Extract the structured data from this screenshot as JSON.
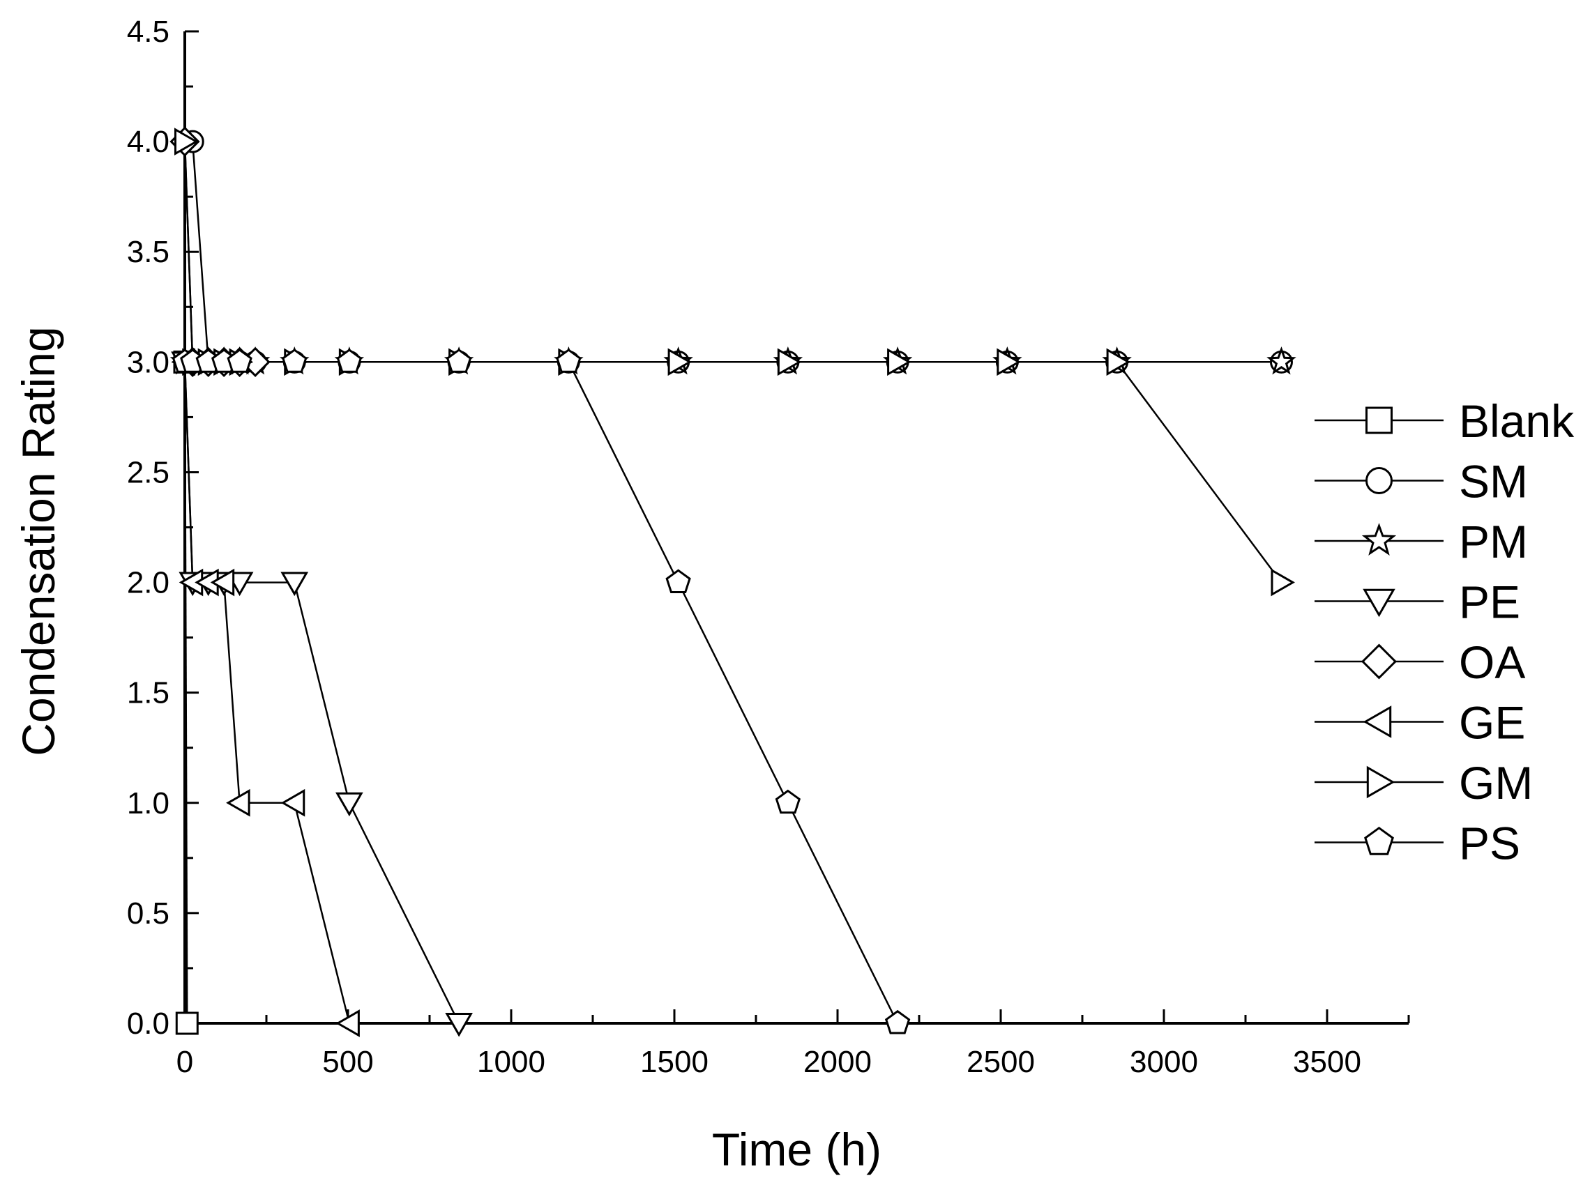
{
  "chart_data": {
    "type": "line",
    "title": "",
    "xlabel": "Time (h)",
    "ylabel": "Condensation Rating",
    "xlim": [
      0,
      3750
    ],
    "ylim": [
      0,
      4.5
    ],
    "xticks": [
      0,
      500,
      1000,
      1500,
      2000,
      2500,
      3000,
      3500
    ],
    "yticks": [
      0.0,
      0.5,
      1.0,
      1.5,
      2.0,
      2.5,
      3.0,
      3.5,
      4.0,
      4.5
    ],
    "xtick_labels": [
      "0",
      "500",
      "1000",
      "1500",
      "2000",
      "2500",
      "3000",
      "3500"
    ],
    "ytick_labels": [
      "0.0",
      "0.5",
      "1.0",
      "1.5",
      "2.0",
      "2.5",
      "3.0",
      "3.5",
      "4.0",
      "4.5"
    ],
    "grid": false,
    "legend_position": "right",
    "series": [
      {
        "name": "Blank",
        "marker": "square",
        "points": [
          [
            0,
            3
          ],
          [
            7,
            0
          ]
        ]
      },
      {
        "name": "SM",
        "marker": "circle",
        "points": [
          [
            0,
            4
          ],
          [
            24,
            4
          ],
          [
            72,
            3
          ],
          [
            120,
            3
          ],
          [
            168,
            3
          ],
          [
            216,
            3
          ],
          [
            336,
            3
          ],
          [
            504,
            3
          ],
          [
            840,
            3
          ],
          [
            1176,
            3
          ],
          [
            1512,
            3
          ],
          [
            1848,
            3
          ],
          [
            2184,
            3
          ],
          [
            2520,
            3
          ],
          [
            2856,
            3
          ],
          [
            3360,
            3
          ]
        ]
      },
      {
        "name": "PM",
        "marker": "star",
        "points": [
          [
            0,
            3
          ],
          [
            24,
            3
          ],
          [
            72,
            3
          ],
          [
            120,
            3
          ],
          [
            168,
            3
          ],
          [
            216,
            3
          ],
          [
            336,
            3
          ],
          [
            504,
            3
          ],
          [
            840,
            3
          ],
          [
            1176,
            3
          ],
          [
            1512,
            3
          ],
          [
            1848,
            3
          ],
          [
            2184,
            3
          ],
          [
            2520,
            3
          ],
          [
            2856,
            3
          ],
          [
            3360,
            3
          ]
        ]
      },
      {
        "name": "PE",
        "marker": "triangle-down",
        "points": [
          [
            0,
            3
          ],
          [
            24,
            2
          ],
          [
            72,
            2
          ],
          [
            120,
            2
          ],
          [
            168,
            2
          ],
          [
            336,
            2
          ],
          [
            504,
            1
          ],
          [
            840,
            0
          ]
        ]
      },
      {
        "name": "OA",
        "marker": "diamond",
        "points": [
          [
            0,
            4
          ],
          [
            24,
            3
          ],
          [
            72,
            3
          ],
          [
            120,
            3
          ],
          [
            168,
            3
          ],
          [
            216,
            3
          ]
        ]
      },
      {
        "name": "GE",
        "marker": "triangle-left",
        "points": [
          [
            0,
            3
          ],
          [
            24,
            2
          ],
          [
            72,
            2
          ],
          [
            120,
            2
          ],
          [
            168,
            1
          ],
          [
            336,
            1
          ],
          [
            504,
            0
          ]
        ]
      },
      {
        "name": "GM",
        "marker": "triangle-right",
        "points": [
          [
            0,
            4
          ],
          [
            24,
            3
          ],
          [
            72,
            3
          ],
          [
            120,
            3
          ],
          [
            168,
            3
          ],
          [
            336,
            3
          ],
          [
            504,
            3
          ],
          [
            840,
            3
          ],
          [
            1176,
            3
          ],
          [
            1512,
            3
          ],
          [
            1848,
            3
          ],
          [
            2184,
            3
          ],
          [
            2520,
            3
          ],
          [
            2856,
            3
          ],
          [
            3360,
            2
          ]
        ]
      },
      {
        "name": "PS",
        "marker": "pentagon",
        "points": [
          [
            0,
            3
          ],
          [
            24,
            3
          ],
          [
            72,
            3
          ],
          [
            120,
            3
          ],
          [
            168,
            3
          ],
          [
            336,
            3
          ],
          [
            504,
            3
          ],
          [
            840,
            3
          ],
          [
            1176,
            3
          ],
          [
            1512,
            2
          ],
          [
            1848,
            1
          ],
          [
            2184,
            0
          ]
        ]
      }
    ]
  }
}
